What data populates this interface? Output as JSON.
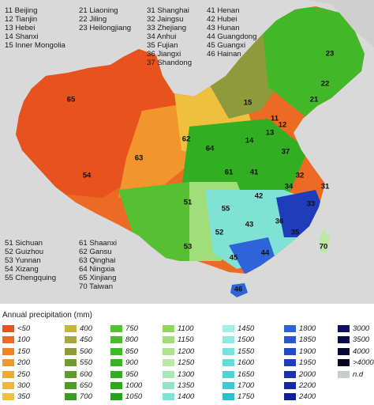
{
  "key_groups": [
    [
      "11 Beijing",
      "12 Tianjin",
      "13 Hebei",
      "14 Shanxi",
      "15 Inner Mongolia"
    ],
    [
      "21 Liaoning",
      "22 Jiling",
      "23 Heilongjiang"
    ],
    [
      "31 Shanghai",
      "32 Jaingsu",
      "33 Zhejiang",
      "34 Anhui",
      "35 Fujian",
      "36 Jiangxi",
      "37 Shandong"
    ],
    [
      "41 Henan",
      "42 Hubei",
      "43 Hunan",
      "44 Guangdong",
      "45 Guangxi",
      "46 Hainan"
    ],
    [
      "51 Sichuan",
      "52 Guizhou",
      "53 Yunnan",
      "54 Xizang",
      "55 Chengquing"
    ],
    [
      "61 Shaanxi",
      "62 Gansu",
      "63 Qinghai",
      "64 Ningxia",
      "65 Xinjiang",
      "70 Taiwan"
    ]
  ],
  "map_labels": [
    "65",
    "54",
    "63",
    "62",
    "64",
    "15",
    "23",
    "22",
    "21",
    "11",
    "12",
    "13",
    "14",
    "37",
    "61",
    "41",
    "32",
    "34",
    "31",
    "33",
    "42",
    "51",
    "55",
    "43",
    "36",
    "35",
    "52",
    "53",
    "45",
    "44",
    "70",
    "46"
  ],
  "legend": {
    "title": "Annual precipitation (mm)",
    "items": [
      {
        "label": "<50",
        "color": "#e8521e"
      },
      {
        "label": "100",
        "color": "#ec6a24"
      },
      {
        "label": "150",
        "color": "#ef8128"
      },
      {
        "label": "200",
        "color": "#f1952c"
      },
      {
        "label": "250",
        "color": "#f3a831"
      },
      {
        "label": "300",
        "color": "#f0b63a"
      },
      {
        "label": "350",
        "color": "#eec03e"
      },
      {
        "label": "400",
        "color": "#c7b541"
      },
      {
        "label": "450",
        "color": "#a6a642"
      },
      {
        "label": "500",
        "color": "#8f9a3c"
      },
      {
        "label": "550",
        "color": "#6f9a35"
      },
      {
        "label": "600",
        "color": "#5e9a2e"
      },
      {
        "label": "650",
        "color": "#4f9a2a"
      },
      {
        "label": "700",
        "color": "#3f9a25"
      },
      {
        "label": "750",
        "color": "#55c132"
      },
      {
        "label": "800",
        "color": "#4bbd2c"
      },
      {
        "label": "850",
        "color": "#42b828"
      },
      {
        "label": "900",
        "color": "#39b324"
      },
      {
        "label": "950",
        "color": "#31ae21"
      },
      {
        "label": "1000",
        "color": "#2aa91e"
      },
      {
        "label": "1050",
        "color": "#22a31b"
      },
      {
        "label": "1100",
        "color": "#8fd860"
      },
      {
        "label": "1150",
        "color": "#9fde78"
      },
      {
        "label": "1200",
        "color": "#aee38e"
      },
      {
        "label": "1250",
        "color": "#bde8a4"
      },
      {
        "label": "1300",
        "color": "#a8e6b4"
      },
      {
        "label": "1350",
        "color": "#93e4c4"
      },
      {
        "label": "1400",
        "color": "#7fe2d4"
      },
      {
        "label": "1450",
        "color": "#a2efe6"
      },
      {
        "label": "1500",
        "color": "#8ee9e2"
      },
      {
        "label": "1550",
        "color": "#7ae2de"
      },
      {
        "label": "1600",
        "color": "#66dbda"
      },
      {
        "label": "1650",
        "color": "#52d3d6"
      },
      {
        "label": "1700",
        "color": "#3fcad2"
      },
      {
        "label": "1750",
        "color": "#2cc0cd"
      },
      {
        "label": "1800",
        "color": "#2f64d8"
      },
      {
        "label": "1850",
        "color": "#2956cf"
      },
      {
        "label": "1900",
        "color": "#2449c5"
      },
      {
        "label": "1950",
        "color": "#1f3dbb"
      },
      {
        "label": "2000",
        "color": "#1a31b0"
      },
      {
        "label": "2200",
        "color": "#1527a4"
      },
      {
        "label": "2400",
        "color": "#111d97"
      },
      {
        "label": "3000",
        "color": "#0e1060"
      },
      {
        "label": "3500",
        "color": "#0b0b4a"
      },
      {
        "label": "4000",
        "color": "#080835"
      },
      {
        "label": ">4000",
        "color": "#050520"
      },
      {
        "label": "n.d",
        "color": "#c8cccc"
      }
    ]
  }
}
